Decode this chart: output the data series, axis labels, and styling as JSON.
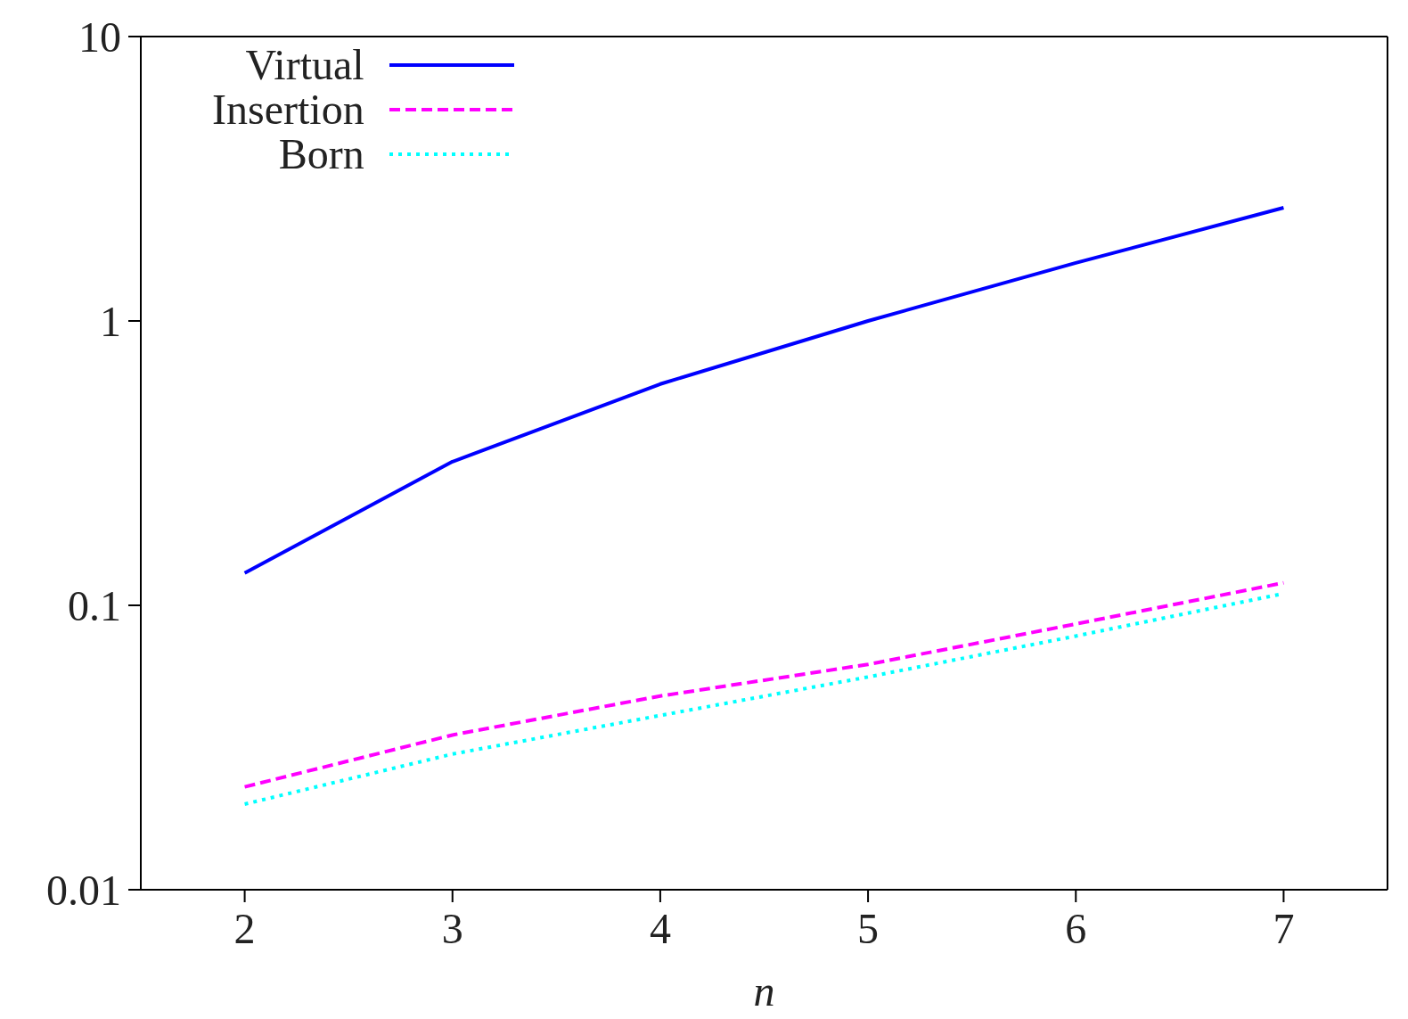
{
  "chart_data": {
    "type": "line",
    "xlabel": "n",
    "x": [
      2,
      3,
      4,
      5,
      6,
      7
    ],
    "series": [
      {
        "name": "Virtual",
        "color": "#0000ff",
        "line_style": "solid",
        "values": [
          0.13,
          0.32,
          0.6,
          1.0,
          1.6,
          2.5
        ]
      },
      {
        "name": "Insertion",
        "color": "#ff00ff",
        "line_style": "dashed",
        "values": [
          0.023,
          0.035,
          0.048,
          0.062,
          0.086,
          0.12
        ]
      },
      {
        "name": "Born",
        "color": "#00ffff",
        "line_style": "dotted",
        "values": [
          0.02,
          0.03,
          0.041,
          0.056,
          0.078,
          0.11
        ]
      }
    ],
    "xlim": [
      1.5,
      7.5
    ],
    "xticks": [
      2,
      3,
      4,
      5,
      6,
      7
    ],
    "ylim": [
      0.01,
      10
    ],
    "yticks": [
      0.01,
      0.1,
      1,
      10
    ],
    "log": "y",
    "grid": false,
    "legend": "top left",
    "marker": "none"
  }
}
